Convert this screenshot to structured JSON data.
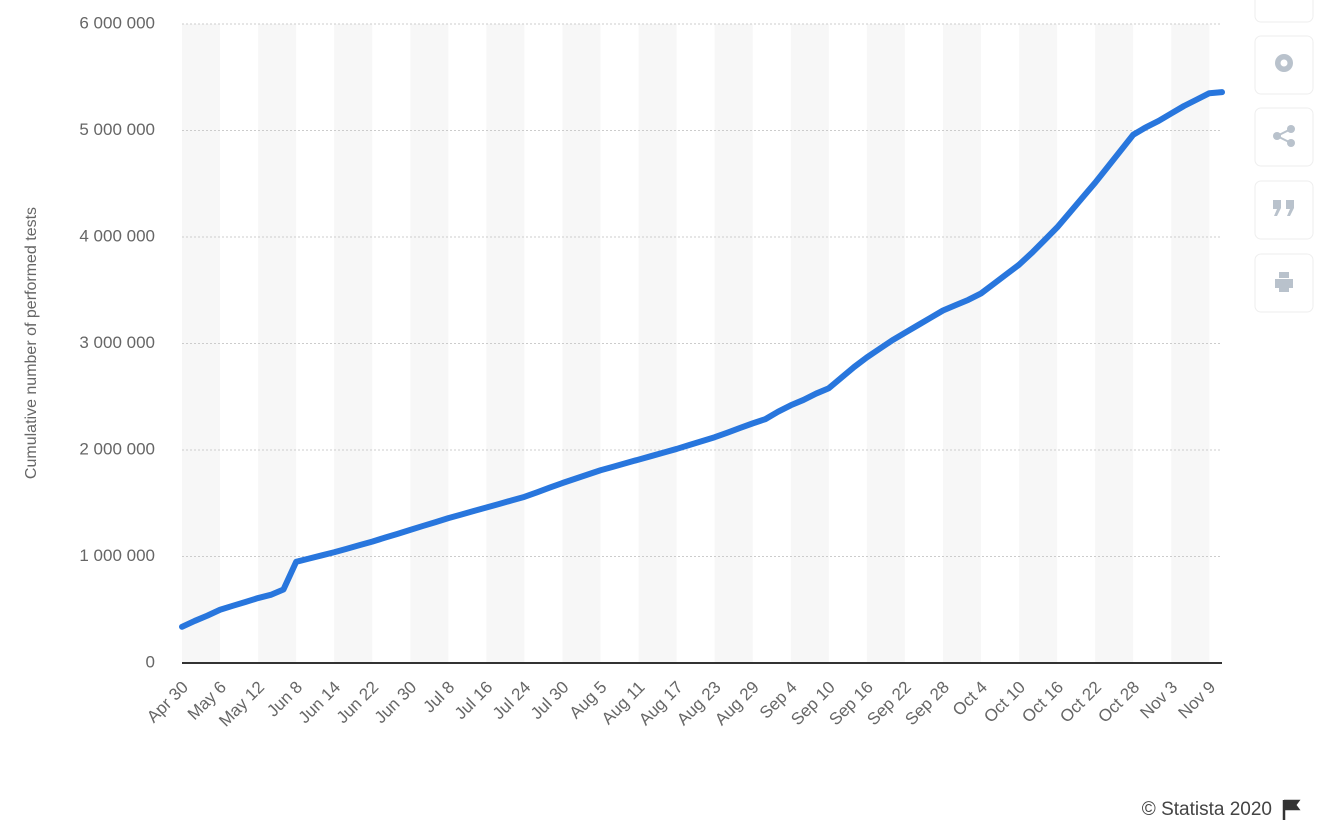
{
  "chart_data": {
    "type": "line",
    "y_label": "Cumulative number of performed tests",
    "source": "© Statista 2020",
    "categories": [
      "Apr 30",
      null,
      null,
      "May 6",
      null,
      null,
      "May 12",
      null,
      null,
      "Jun 8",
      null,
      null,
      "Jun 14",
      null,
      null,
      "Jun 22",
      null,
      null,
      "Jun 30",
      null,
      null,
      "Jul 8",
      null,
      null,
      "Jul 16",
      null,
      null,
      "Jul 24",
      null,
      null,
      "Jul 30",
      null,
      null,
      "Aug 5",
      null,
      null,
      "Aug 11",
      null,
      null,
      "Aug 17",
      null,
      null,
      "Aug 23",
      null,
      null,
      "Aug 29",
      null,
      null,
      "Sep 4",
      null,
      null,
      "Sep 10",
      null,
      null,
      "Sep 16",
      null,
      null,
      "Sep 22",
      null,
      null,
      "Sep 28",
      null,
      null,
      "Oct 4",
      null,
      null,
      "Oct 10",
      null,
      null,
      "Oct 16",
      null,
      null,
      "Oct 22",
      null,
      null,
      "Oct 28",
      null,
      null,
      "Nov 3",
      null,
      null,
      "Nov 9",
      null
    ],
    "series": [
      {
        "color": "#2876dd",
        "values": [
          340000,
          395000,
          445000,
          500000,
          537000,
          573000,
          610000,
          640000,
          690000,
          950000,
          980000,
          1010000,
          1040000,
          1073000,
          1107000,
          1140000,
          1177000,
          1213000,
          1250000,
          1287000,
          1323000,
          1360000,
          1393000,
          1427000,
          1460000,
          1493000,
          1527000,
          1560000,
          1603000,
          1647000,
          1690000,
          1730000,
          1770000,
          1810000,
          1843000,
          1877000,
          1910000,
          1943000,
          1977000,
          2010000,
          2047000,
          2083000,
          2120000,
          2163000,
          2207000,
          2250000,
          2290000,
          2360000,
          2420000,
          2470000,
          2530000,
          2580000,
          2680000,
          2780000,
          2870000,
          2950000,
          3030000,
          3100000,
          3170000,
          3240000,
          3310000,
          3360000,
          3410000,
          3470000,
          3560000,
          3650000,
          3740000,
          3850000,
          3970000,
          4090000,
          4230000,
          4370000,
          4510000,
          4660000,
          4810000,
          4960000,
          5030000,
          5090000,
          5160000,
          5230000,
          5290000,
          5350000,
          5360000
        ]
      }
    ],
    "ylim": [
      0,
      6000000
    ],
    "yticks": [
      0,
      {
        "value": 1000000,
        "label": "1 000 000"
      },
      {
        "value": 2000000,
        "label": "2 000 000"
      },
      {
        "value": 3000000,
        "label": "3 000 000"
      },
      {
        "value": 4000000,
        "label": "4 000 000"
      },
      {
        "value": 5000000,
        "label": "5 000 000"
      },
      {
        "value": 6000000,
        "label": "6 000 000"
      }
    ],
    "grid": true
  }
}
